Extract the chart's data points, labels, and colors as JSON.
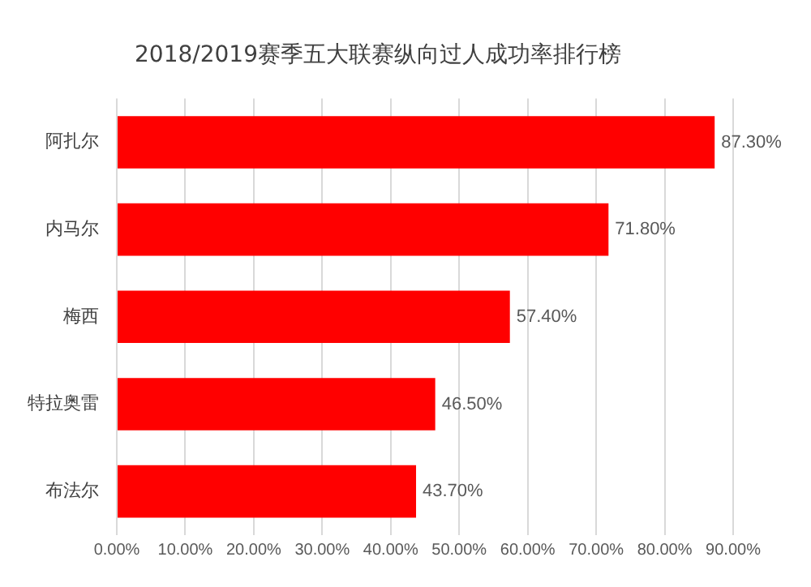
{
  "chart_data": {
    "type": "bar",
    "orientation": "horizontal",
    "title": "2018/2019赛季五大联赛纵向过人成功率排行榜",
    "categories": [
      "阿扎尔",
      "内马尔",
      "梅西",
      "特拉奥雷",
      "布法尔"
    ],
    "values": [
      87.3,
      71.8,
      57.4,
      46.5,
      43.7
    ],
    "value_labels": [
      "87.30%",
      "71.80%",
      "57.40%",
      "46.50%",
      "43.70%"
    ],
    "color": "#ff0000",
    "xlim": [
      0,
      90
    ],
    "xticks": [
      {
        "value": 0,
        "label": "0.00%"
      },
      {
        "value": 10,
        "label": "10.00%"
      },
      {
        "value": 20,
        "label": "20.00%"
      },
      {
        "value": 30,
        "label": "30.00%"
      },
      {
        "value": 40,
        "label": "40.00%"
      },
      {
        "value": 50,
        "label": "50.00%"
      },
      {
        "value": 60,
        "label": "60.00%"
      },
      {
        "value": 70,
        "label": "70.00%"
      },
      {
        "value": 80,
        "label": "80.00%"
      },
      {
        "value": 90,
        "label": "90.00%"
      }
    ],
    "grid": "x"
  }
}
